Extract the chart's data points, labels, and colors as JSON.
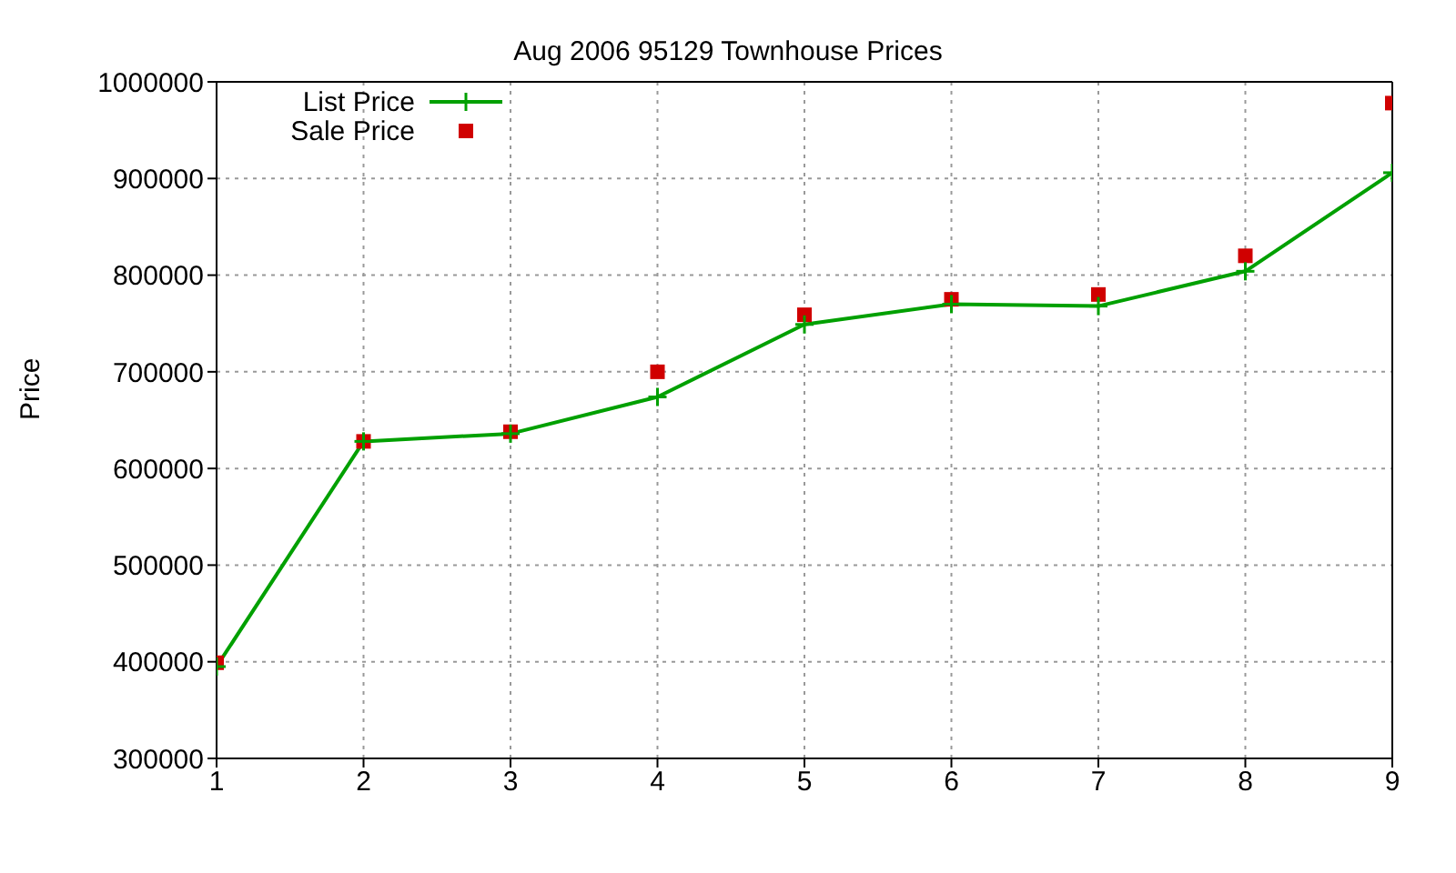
{
  "chart_data": {
    "type": "line",
    "title": "Aug 2006 95129 Townhouse Prices",
    "ylabel": "Price",
    "x": [
      1,
      2,
      3,
      4,
      5,
      6,
      7,
      8,
      9
    ],
    "series": [
      {
        "name": "List Price",
        "color": "#00a000",
        "marker": "cross",
        "values": [
          395000,
          628000,
          636000,
          674000,
          749000,
          770000,
          768000,
          804000,
          906000
        ]
      },
      {
        "name": "Sale Price",
        "color": "#d00000",
        "type": "scatter",
        "marker": "square",
        "values": [
          399000,
          628000,
          638000,
          700000,
          759000,
          775000,
          780000,
          820000,
          978000
        ]
      }
    ],
    "xlim": [
      1,
      9
    ],
    "xticks": [
      1,
      2,
      3,
      4,
      5,
      6,
      7,
      8,
      9
    ],
    "ylim": [
      300000,
      1000000
    ],
    "yticks": [
      300000,
      400000,
      500000,
      600000,
      700000,
      800000,
      900000,
      1000000
    ],
    "grid": true,
    "legend": "top left"
  }
}
